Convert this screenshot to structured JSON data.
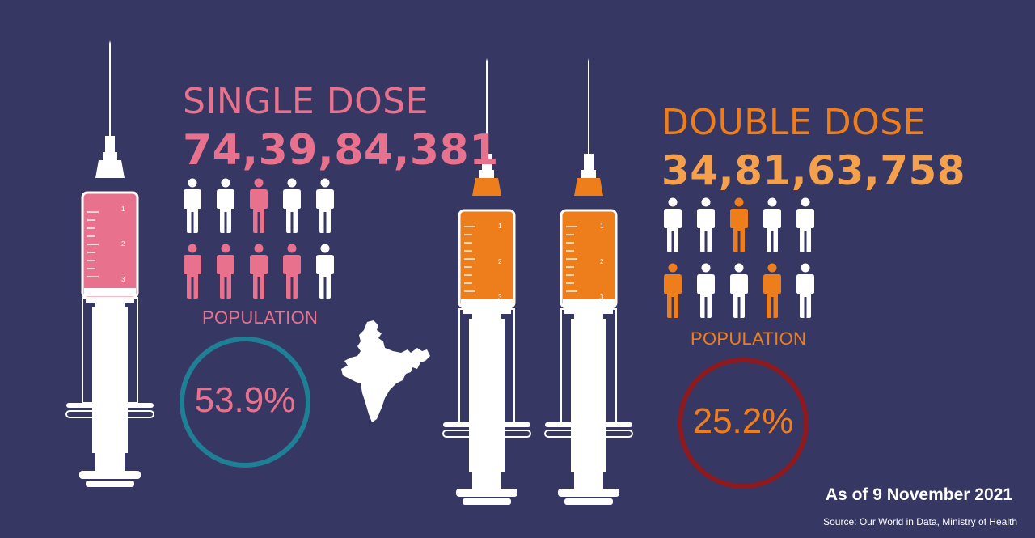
{
  "single_dose": {
    "title": "SINGLE DOSE",
    "count": "74,39,84,381",
    "population_label": "POPULATION",
    "percent_text": "53.9%",
    "percent_value": 53.9,
    "icons": [
      "white",
      "white",
      "pink",
      "white",
      "white",
      "pink",
      "pink",
      "pink",
      "pink",
      "white"
    ]
  },
  "double_dose": {
    "title": "DOUBLE DOSE",
    "count": "34,81,63,758",
    "population_label": "POPULATION",
    "percent_text": "25.2%",
    "percent_value": 25.2,
    "icons": [
      "white",
      "white",
      "orange",
      "white",
      "white",
      "orange",
      "white",
      "white",
      "orange",
      "white"
    ]
  },
  "footer": {
    "as_of": "As of 9 November 2021",
    "source": "Source: Our World in Data, Ministry of Health"
  },
  "colors": {
    "background": "#363762",
    "pink": "#e8718d",
    "orange": "#ee7d1b",
    "light_orange": "#f5a04c",
    "white": "#ffffff",
    "teal_ring": "#1f7f95",
    "red_ring": "#8c1a1f"
  },
  "icons": {
    "syringe_left": "syringe-pink-icon",
    "syringe_right": "syringe-orange-icon",
    "map": "india-map-icon",
    "person": "person-icon"
  }
}
